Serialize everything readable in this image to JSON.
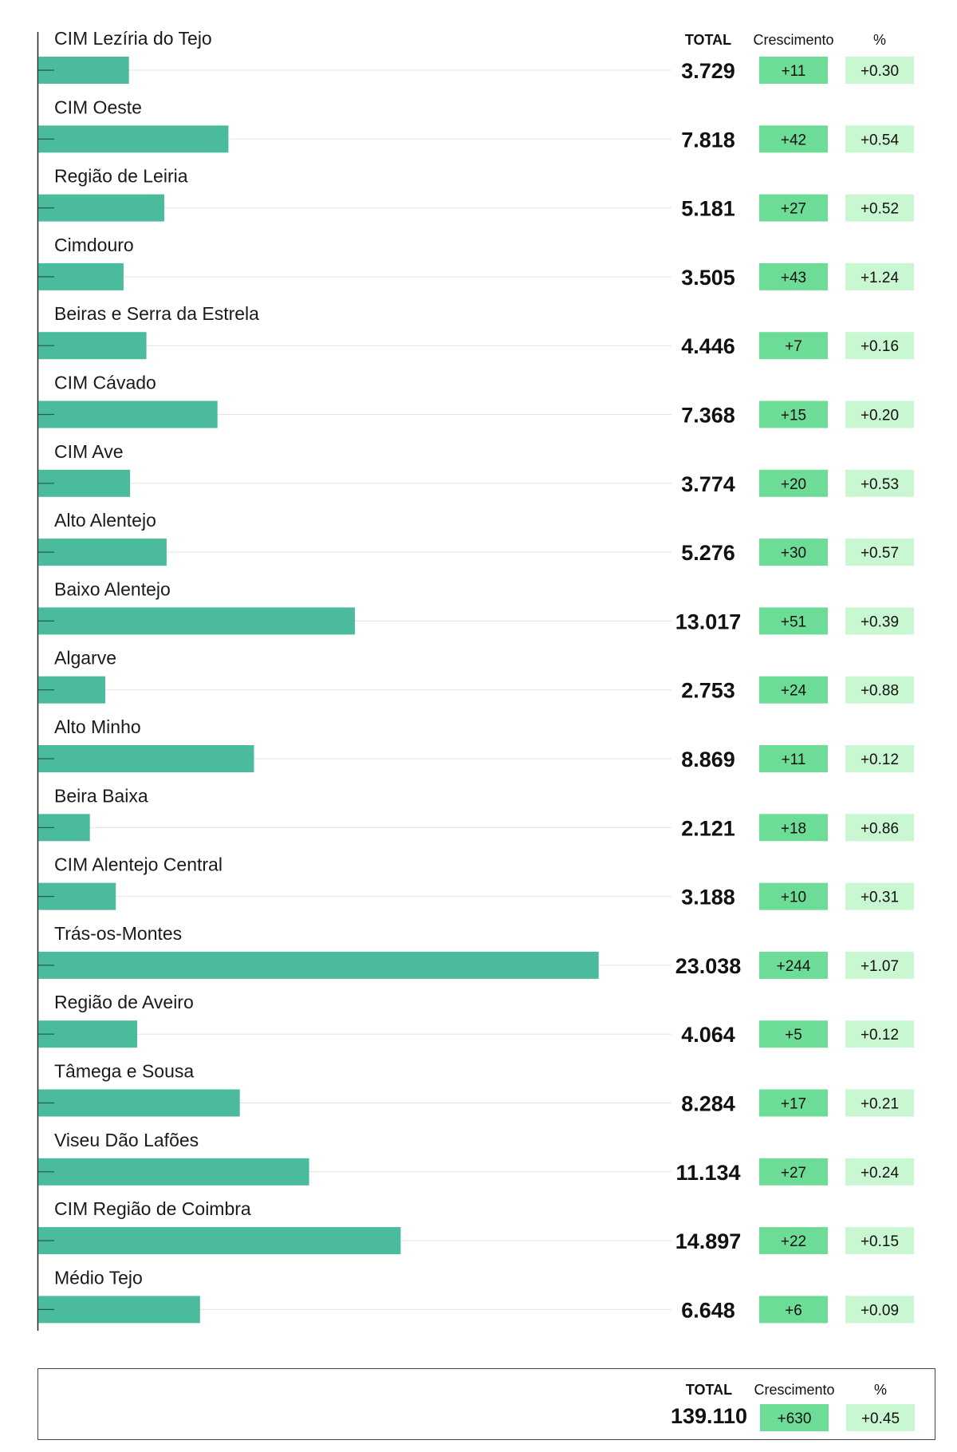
{
  "chart_data": {
    "type": "bar",
    "orientation": "horizontal",
    "headers": {
      "total": "TOTAL",
      "growth": "Crescimento",
      "percent": "%"
    },
    "colors": {
      "bar": "#4abb9c",
      "growth_chip": "#6ddc96",
      "percent_chip": "#c9f7d2"
    },
    "categories": [
      "CIM Lezíria do Tejo",
      "CIM Oeste",
      "Região de Leiria",
      "Cimdouro",
      "Beiras e Serra da Estrela",
      "CIM Cávado",
      "CIM Ave",
      "Alto Alentejo",
      "Baixo Alentejo",
      "Algarve",
      "Alto Minho",
      "Beira Baixa",
      "CIM Alentejo Central",
      "Trás-os-Montes",
      "Região de Aveiro",
      "Tâmega e Sousa",
      "Viseu Dão Lafões",
      "CIM Região de Coimbra",
      "Médio Tejo"
    ],
    "values": [
      3729,
      7818,
      5181,
      3505,
      4446,
      7368,
      3774,
      5276,
      13017,
      2753,
      8869,
      2121,
      3188,
      23038,
      4064,
      8284,
      11134,
      14897,
      6648
    ],
    "total_labels": [
      "3.729",
      "7.818",
      "5.181",
      "3.505",
      "4.446",
      "7.368",
      "3.774",
      "5.276",
      "13.017",
      "2.753",
      "8.869",
      "2.121",
      "3.188",
      "23.038",
      "4.064",
      "8.284",
      "11.134",
      "14.897",
      "6.648"
    ],
    "growth": [
      "+11",
      "+42",
      "+27",
      "+43",
      "+7",
      "+15",
      "+20",
      "+30",
      "+51",
      "+24",
      "+11",
      "+18",
      "+10",
      "+244",
      "+5",
      "+17",
      "+27",
      "+22",
      "+6"
    ],
    "percent": [
      "+0.30",
      "+0.54",
      "+0.52",
      "+1.24",
      "+0.16",
      "+0.20",
      "+0.53",
      "+0.57",
      "+0.39",
      "+0.88",
      "+0.12",
      "+0.86",
      "+0.31",
      "+1.07",
      "+0.12",
      "+0.21",
      "+0.24",
      "+0.15",
      "+0.09"
    ],
    "xlim": [
      0,
      24000
    ]
  },
  "summary": {
    "total_header": "TOTAL",
    "growth_header": "Crescimento",
    "percent_header": "%",
    "total": "139.110",
    "growth": "+630",
    "percent": "+0.45"
  }
}
